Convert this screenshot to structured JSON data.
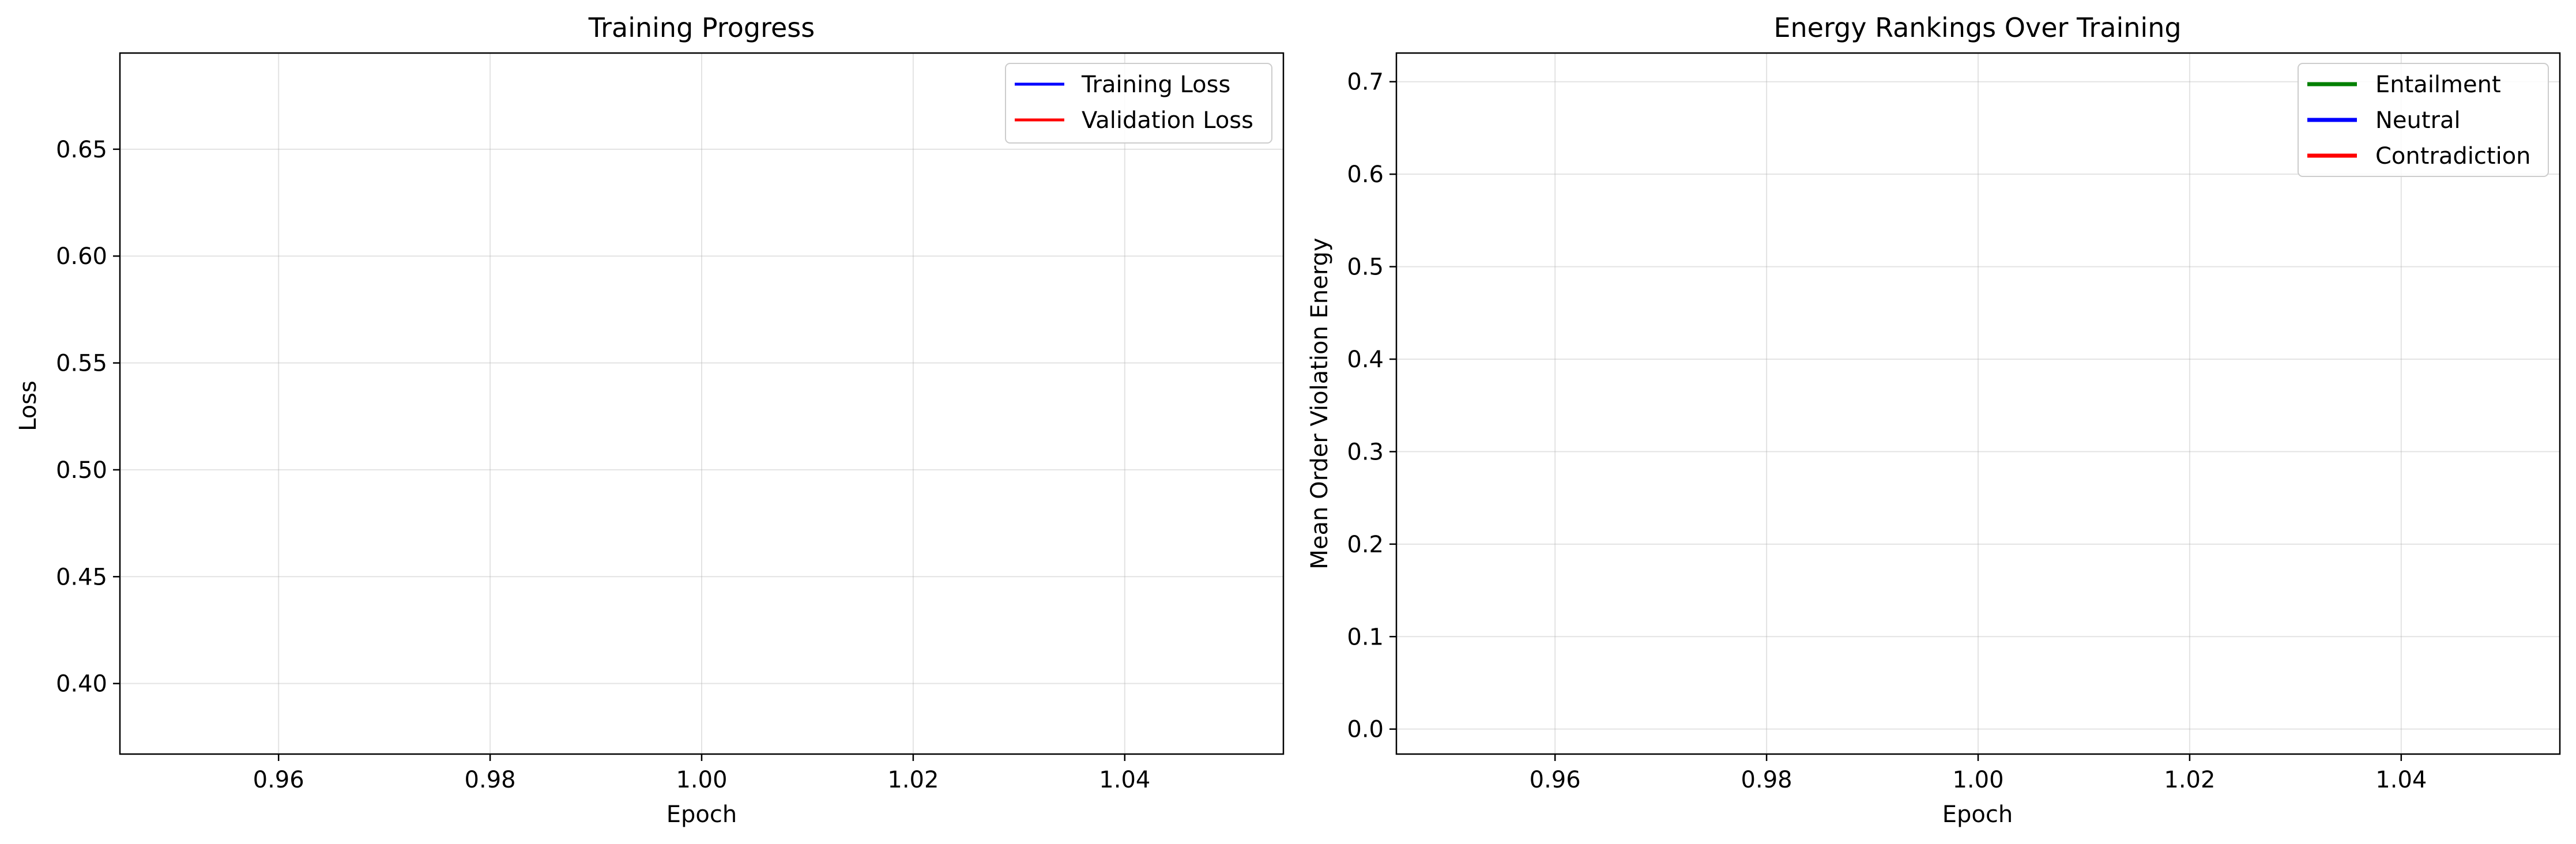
{
  "chart_data": [
    {
      "type": "line",
      "title": "Training Progress",
      "xlabel": "Epoch",
      "ylabel": "Loss",
      "xlim": [
        0.945,
        1.055
      ],
      "ylim": [
        0.367,
        0.695
      ],
      "xticks": [
        0.96,
        0.98,
        1.0,
        1.02,
        1.04
      ],
      "xtick_labels": [
        "0.96",
        "0.98",
        "1.00",
        "1.02",
        "1.04"
      ],
      "yticks": [
        0.4,
        0.45,
        0.5,
        0.55,
        0.6,
        0.65
      ],
      "ytick_labels": [
        "0.40",
        "0.45",
        "0.50",
        "0.55",
        "0.60",
        "0.65"
      ],
      "grid": true,
      "legend_position": "top-right",
      "series": [
        {
          "name": "Training Loss",
          "color": "#0000ff",
          "x": [],
          "y": []
        },
        {
          "name": "Validation Loss",
          "color": "#ff0000",
          "x": [],
          "y": []
        }
      ]
    },
    {
      "type": "line",
      "title": "Energy Rankings Over Training",
      "xlabel": "Epoch",
      "ylabel": "Mean Order Violation Energy",
      "xlim": [
        0.945,
        1.055
      ],
      "ylim": [
        -0.027,
        0.731
      ],
      "xticks": [
        0.96,
        0.98,
        1.0,
        1.02,
        1.04
      ],
      "xtick_labels": [
        "0.96",
        "0.98",
        "1.00",
        "1.02",
        "1.04"
      ],
      "yticks": [
        0.0,
        0.1,
        0.2,
        0.3,
        0.4,
        0.5,
        0.6,
        0.7
      ],
      "ytick_labels": [
        "0.0",
        "0.1",
        "0.2",
        "0.3",
        "0.4",
        "0.5",
        "0.6",
        "0.7"
      ],
      "grid": true,
      "legend_position": "top-right",
      "series": [
        {
          "name": "Entailment",
          "color": "#008000",
          "x": [],
          "y": []
        },
        {
          "name": "Neutral",
          "color": "#0000ff",
          "x": [],
          "y": []
        },
        {
          "name": "Contradiction",
          "color": "#ff0000",
          "x": [],
          "y": []
        }
      ]
    }
  ]
}
